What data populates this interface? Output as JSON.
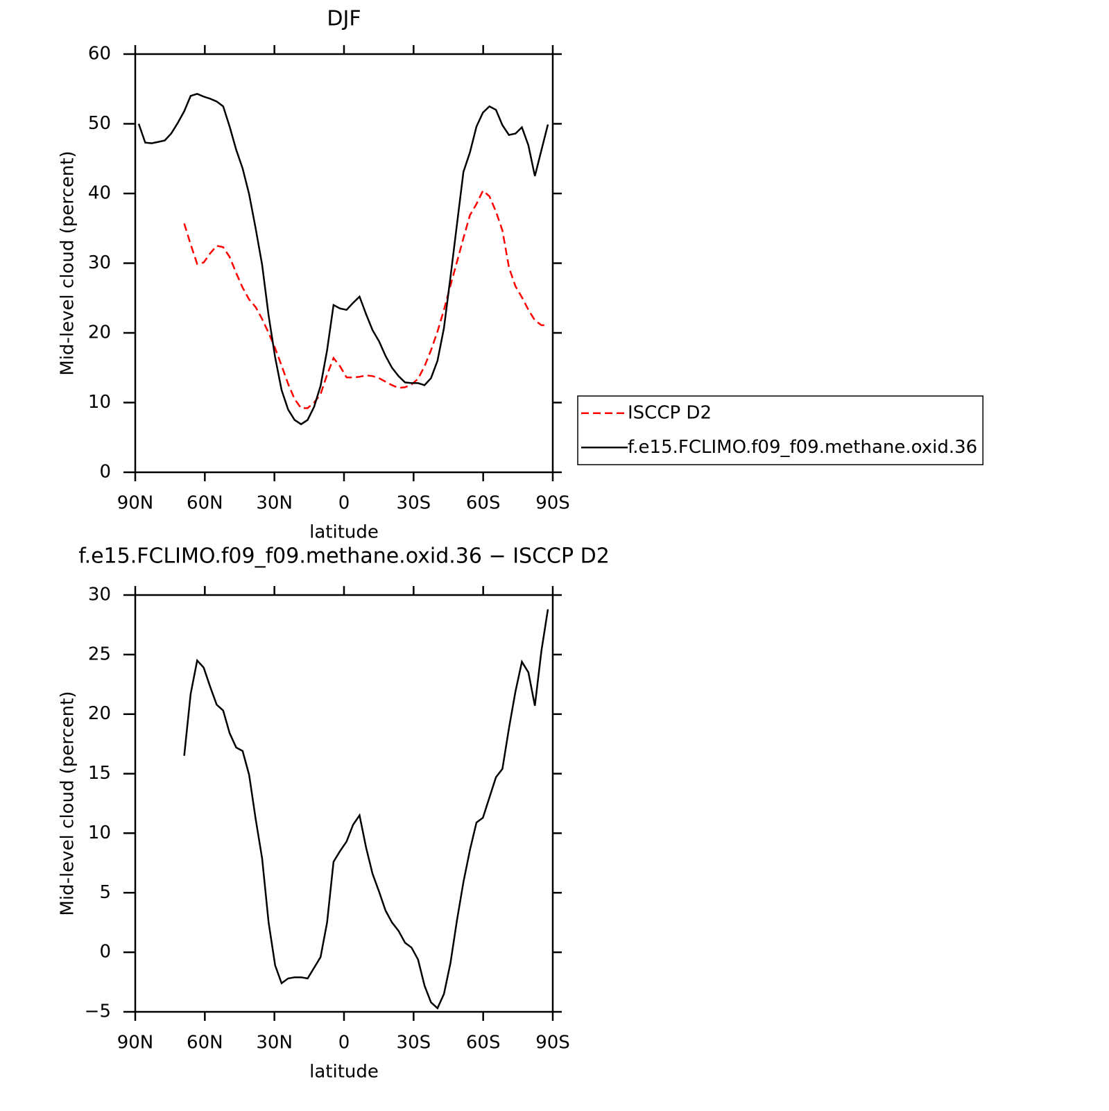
{
  "chart_data": [
    {
      "type": "line",
      "title": "DJF",
      "x_label": "latitude",
      "y_label": "Mid-level cloud (percent)",
      "x": [
        88.5,
        85.7,
        82.9,
        80.1,
        77.3,
        74.5,
        71.7,
        68.9,
        66.1,
        63.3,
        60.5,
        57.7,
        54.9,
        52.1,
        49.3,
        46.5,
        43.7,
        40.9,
        38.1,
        35.3,
        32.5,
        29.7,
        26.9,
        24.1,
        21.3,
        18.5,
        15.7,
        12.9,
        10.1,
        7.3,
        4.5,
        1.7,
        -1.1,
        -3.9,
        -6.7,
        -9.5,
        -12.3,
        -15.1,
        -17.9,
        -20.7,
        -23.5,
        -26.3,
        -29.1,
        -31.9,
        -34.7,
        -37.5,
        -40.3,
        -43.1,
        -45.9,
        -48.7,
        -51.5,
        -54.3,
        -57.1,
        -59.9,
        -62.7,
        -65.5,
        -68.3,
        -71.1,
        -73.9,
        -76.7,
        -79.5,
        -82.3,
        -85.1,
        -87.9
      ],
      "series": [
        {
          "name": "ISCCP D2",
          "color": "#ff0000",
          "style": "dashed",
          "values": [
            null,
            null,
            null,
            null,
            null,
            null,
            null,
            35.7,
            32.7,
            29.9,
            30.1,
            31.4,
            32.5,
            32.3,
            30.9,
            28.6,
            26.5,
            24.8,
            23.7,
            22.0,
            20.0,
            17.8,
            15.3,
            12.7,
            10.5,
            9.2,
            9.2,
            10.0,
            11.2,
            14.0,
            16.4,
            15.2,
            13.6,
            13.6,
            13.7,
            13.9,
            13.8,
            13.5,
            13.0,
            12.5,
            12.1,
            12.2,
            12.6,
            13.4,
            15.2,
            17.5,
            20.2,
            23.3,
            26.8,
            30.2,
            33.6,
            36.9,
            38.5,
            40.4,
            39.6,
            37.4,
            34.7,
            29.4,
            26.7,
            25.1,
            23.3,
            21.8,
            21.1,
            21.1
          ]
        },
        {
          "name": "f.e15.FCLIMO.f09_f09.methane.oxid.36",
          "color": "#000000",
          "style": "solid",
          "values": [
            50.0,
            47.3,
            47.2,
            47.4,
            47.6,
            48.6,
            50.1,
            51.8,
            54.0,
            54.3,
            53.9,
            53.6,
            53.2,
            52.5,
            49.6,
            46.3,
            43.6,
            39.9,
            35.0,
            29.8,
            22.5,
            16.5,
            11.8,
            9.0,
            7.5,
            6.9,
            7.5,
            9.4,
            12.4,
            17.5,
            24.0,
            23.5,
            23.3,
            24.3,
            25.2,
            22.7,
            20.4,
            18.8,
            16.7,
            15.0,
            13.8,
            12.9,
            12.8,
            12.8,
            12.5,
            13.5,
            16.0,
            20.7,
            28.0,
            35.6,
            43.1,
            45.9,
            49.6,
            51.6,
            52.5,
            52.0,
            49.8,
            48.4,
            48.6,
            49.5,
            46.9,
            42.5,
            46.2,
            49.9
          ]
        }
      ],
      "xlim": [
        90,
        -90
      ],
      "xticks": [
        {
          "value": 90,
          "label": "90N"
        },
        {
          "value": 60,
          "label": "60N"
        },
        {
          "value": 30,
          "label": "30N"
        },
        0,
        {
          "value": -30,
          "label": "30S"
        },
        {
          "value": -60,
          "label": "60S"
        },
        {
          "value": -90,
          "label": "90S"
        }
      ],
      "ylim": [
        0,
        60
      ],
      "yticks": [
        0,
        10,
        20,
        30,
        40,
        50,
        60
      ],
      "legend": "outside-right"
    },
    {
      "type": "line",
      "title": "f.e15.FCLIMO.f09_f09.methane.oxid.36 − ISCCP D2",
      "x_label": "latitude",
      "y_label": "Mid-level cloud (percent)",
      "x": [
        88.5,
        85.7,
        82.9,
        80.1,
        77.3,
        74.5,
        71.7,
        68.9,
        66.1,
        63.3,
        60.5,
        57.7,
        54.9,
        52.1,
        49.3,
        46.5,
        43.7,
        40.9,
        38.1,
        35.3,
        32.5,
        29.7,
        26.9,
        24.1,
        21.3,
        18.5,
        15.7,
        12.9,
        10.1,
        7.3,
        4.5,
        1.7,
        -1.1,
        -3.9,
        -6.7,
        -9.5,
        -12.3,
        -15.1,
        -17.9,
        -20.7,
        -23.5,
        -26.3,
        -29.1,
        -31.9,
        -34.7,
        -37.5,
        -40.3,
        -43.1,
        -45.9,
        -48.7,
        -51.5,
        -54.3,
        -57.1,
        -59.9,
        -62.7,
        -65.5,
        -68.3,
        -71.1,
        -73.9,
        -76.7,
        -79.5,
        -82.3,
        -85.1,
        -87.9
      ],
      "series": [
        {
          "color": "#000000",
          "style": "solid",
          "values": [
            null,
            null,
            null,
            null,
            null,
            null,
            null,
            16.5,
            21.7,
            24.5,
            23.9,
            22.3,
            20.8,
            20.3,
            18.4,
            17.2,
            16.9,
            14.9,
            11.2,
            7.9,
            2.5,
            -1.1,
            -2.6,
            -2.2,
            -2.1,
            -2.1,
            -2.2,
            -1.3,
            -0.4,
            2.5,
            7.6,
            8.5,
            9.3,
            10.7,
            11.5,
            8.8,
            6.6,
            5.1,
            3.5,
            2.5,
            1.8,
            0.8,
            0.4,
            -0.6,
            -2.8,
            -4.2,
            -4.7,
            -3.5,
            -0.9,
            2.7,
            5.9,
            8.6,
            10.9,
            11.3,
            13.0,
            14.7,
            15.4,
            18.8,
            21.9,
            24.4,
            23.5,
            20.7,
            25.3,
            28.8
          ]
        }
      ],
      "xlim": [
        90,
        -90
      ],
      "xticks": [
        {
          "value": 90,
          "label": "90N"
        },
        {
          "value": 60,
          "label": "60N"
        },
        {
          "value": 30,
          "label": "30N"
        },
        0,
        {
          "value": -30,
          "label": "30S"
        },
        {
          "value": -60,
          "label": "60S"
        },
        {
          "value": -90,
          "label": "90S"
        }
      ],
      "ylim": [
        -5,
        30
      ],
      "yticks": [
        {
          "value": -5,
          "label": "−5"
        },
        0,
        5,
        10,
        15,
        20,
        25,
        30
      ]
    }
  ]
}
